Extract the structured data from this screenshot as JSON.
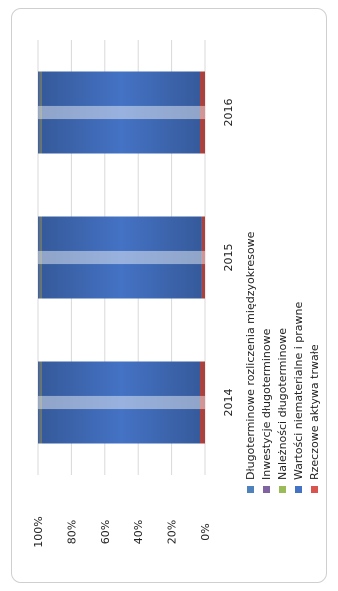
{
  "chart_data": {
    "type": "bar",
    "stacked": true,
    "normalized": true,
    "orientation": "rotated-90",
    "categories": [
      "2014",
      "2015",
      "2016"
    ],
    "series": [
      {
        "name": "Rzeczowe aktywa trwałe",
        "color": "#d9534f",
        "values": [
          3,
          2,
          3
        ]
      },
      {
        "name": "Wartości niematerialne i prawne",
        "color": "#4472c4",
        "values": [
          95,
          96,
          95
        ]
      },
      {
        "name": "Należności długoterminowe",
        "color": "#9bbb59",
        "values": [
          0.5,
          0.5,
          0.5
        ]
      },
      {
        "name": "Inwestycje długoterminowe",
        "color": "#8064a2",
        "values": [
          0.5,
          0.5,
          0.5
        ]
      },
      {
        "name": "Długoterminowe rozliczenia międzyokresowe",
        "color": "#4f81bd",
        "values": [
          1,
          1,
          1
        ]
      }
    ],
    "y_ticks": [
      "0%",
      "20%",
      "40%",
      "60%",
      "80%",
      "100%"
    ],
    "ylim": [
      0,
      100
    ],
    "grid": true,
    "legend_position": "right"
  }
}
